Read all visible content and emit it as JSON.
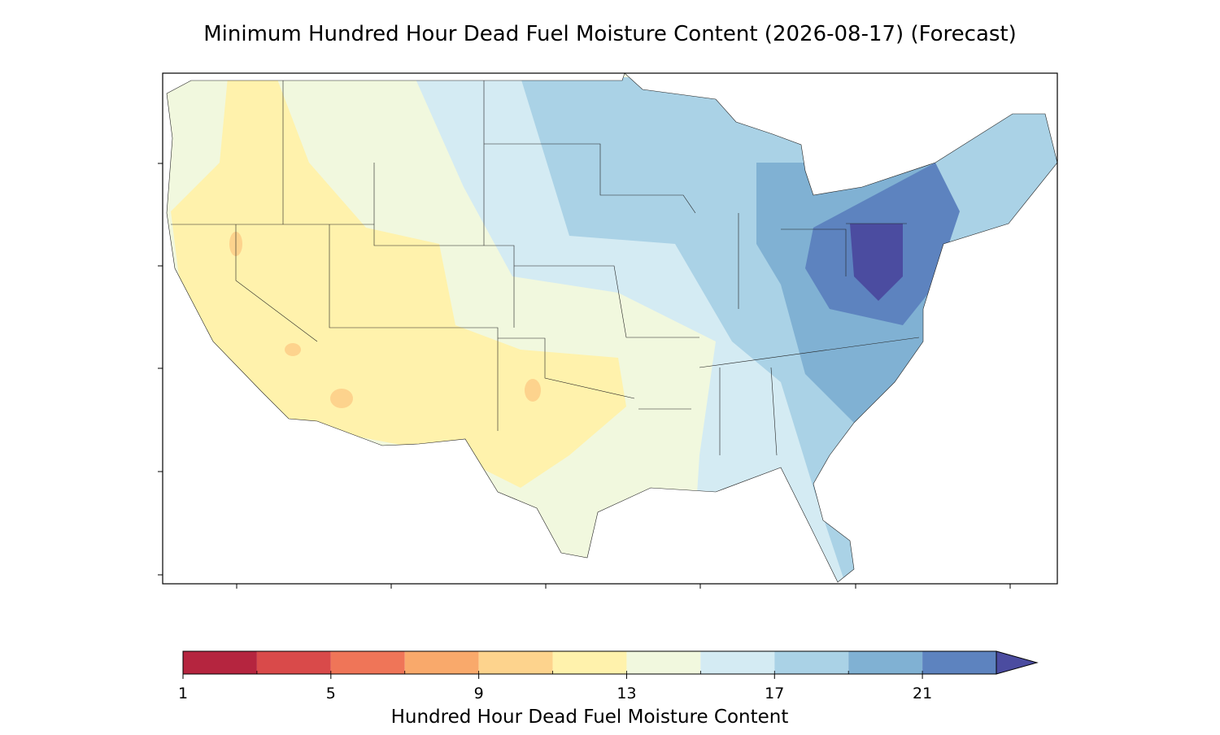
{
  "title": "Minimum Hundred Hour Dead Fuel Moisture Content (2026-08-17) (Forecast)",
  "colorbar": {
    "label": "Hundred Hour Dead Fuel Moisture Content",
    "levels": [
      1,
      3,
      5,
      7,
      9,
      11,
      13,
      15,
      17,
      19,
      21,
      23
    ],
    "colors": [
      "#b5253f",
      "#d94a4a",
      "#ef7558",
      "#f9a96b",
      "#fdd38d",
      "#fff2ac",
      "#f1f8de",
      "#d4ebf3",
      "#aad2e6",
      "#80b1d3",
      "#5d83bf"
    ],
    "extend_color": "#4b4ca0",
    "ticks": [
      1,
      5,
      9,
      13,
      17,
      21
    ]
  }
}
